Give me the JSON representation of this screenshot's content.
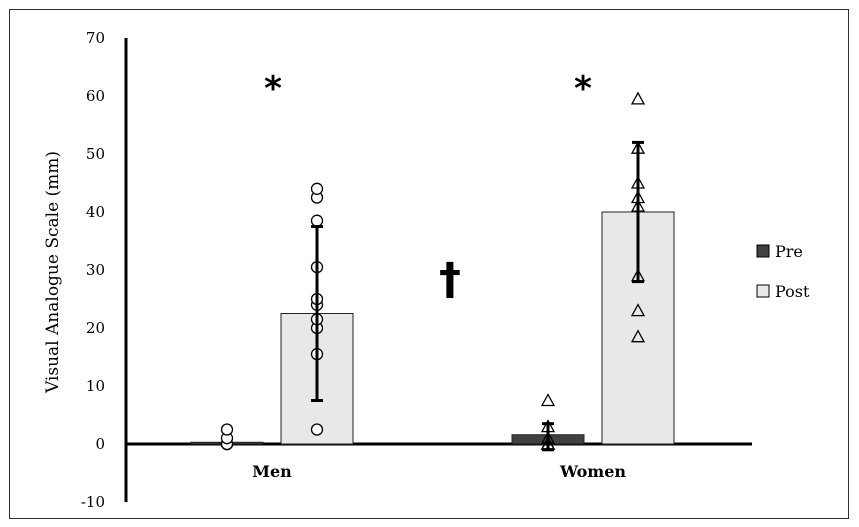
{
  "chart_data": {
    "type": "bar",
    "title": "",
    "ylabel": "Visual Analogue Scale (mm)",
    "xlabel": "",
    "ylim": [
      -10,
      70
    ],
    "yticks": [
      -10,
      0,
      10,
      20,
      30,
      40,
      50,
      60,
      70
    ],
    "categories": [
      "Men",
      "Women"
    ],
    "series": [
      {
        "name": "Pre",
        "color": "#404040",
        "values": [
          0.3,
          1.6
        ],
        "error_low": [
          0,
          -1
        ],
        "error_high": [
          0,
          3.5
        ],
        "points": [
          [
            0,
            0,
            0,
            0,
            1,
            2.5
          ],
          [
            0,
            0,
            0,
            0,
            1,
            3,
            7.5
          ]
        ],
        "marker": [
          "circle",
          "triangle"
        ]
      },
      {
        "name": "Post",
        "color": "#e8e8e8",
        "values": [
          22.5,
          40
        ],
        "error_low": [
          7.5,
          28
        ],
        "error_high": [
          37.5,
          52
        ],
        "points": [
          [
            2.5,
            15.5,
            20,
            21.5,
            24,
            25,
            30.5,
            38.5,
            42.5,
            44
          ],
          [
            18.5,
            23,
            29,
            41,
            42.5,
            45,
            51,
            59.5
          ]
        ],
        "marker": [
          "circle",
          "triangle"
        ]
      }
    ],
    "annotations": {
      "star_men": "*",
      "star_women": "*",
      "dagger": "†"
    },
    "legend_position": "right",
    "grid": false
  }
}
